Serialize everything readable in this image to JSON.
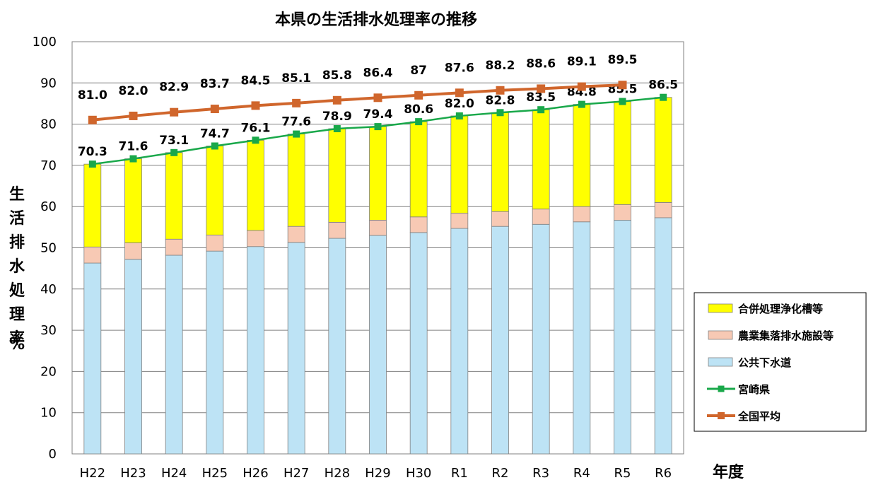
{
  "chart_data": {
    "type": "bar",
    "title": "本県の生活排水処理率の推移",
    "ylabel": "生活排水処理率",
    "yunit": "%",
    "xlabel": "年度",
    "ylim": [
      0,
      100
    ],
    "yticks": [
      "0",
      "10",
      "20",
      "30",
      "40",
      "50",
      "60",
      "70",
      "80",
      "90",
      "100"
    ],
    "grid": true,
    "legend_position": "right",
    "categories": [
      "H22",
      "H23",
      "H24",
      "H25",
      "H26",
      "H27",
      "H28",
      "H29",
      "H30",
      "R1",
      "R2",
      "R3",
      "R4",
      "R5",
      "R6"
    ],
    "stacked_series": [
      {
        "name": "公共下水道",
        "color": "#bde3f5",
        "values": [
          46.3,
          47.2,
          48.2,
          49.2,
          50.3,
          51.3,
          52.3,
          53.0,
          53.7,
          54.7,
          55.2,
          55.7,
          56.3,
          56.7,
          57.3
        ]
      },
      {
        "name": "農業集落排水施設等",
        "color": "#f7c9b4",
        "values": [
          3.9,
          4.0,
          3.9,
          3.9,
          3.9,
          3.9,
          3.9,
          3.7,
          3.8,
          3.7,
          3.6,
          3.7,
          3.7,
          3.8,
          3.7
        ]
      },
      {
        "name": "合併処理浄化槽等",
        "color": "#ffff00",
        "values": [
          20.1,
          20.4,
          21.0,
          21.6,
          21.9,
          22.4,
          22.7,
          22.7,
          23.1,
          23.6,
          24.0,
          24.1,
          24.8,
          25.0,
          25.5
        ]
      }
    ],
    "line_series": [
      {
        "name": "宮崎県",
        "color": "#19a84a",
        "values": [
          70.3,
          71.6,
          73.1,
          74.7,
          76.1,
          77.6,
          78.9,
          79.4,
          80.6,
          82.0,
          82.8,
          83.5,
          84.8,
          85.5,
          86.5
        ],
        "labels": [
          "70.3",
          "71.6",
          "73.1",
          "74.7",
          "76.1",
          "77.6",
          "78.9",
          "79.4",
          "80.6",
          "82.0",
          "82.8",
          "83.5",
          "84.8",
          "85.5",
          "86.5"
        ]
      },
      {
        "name": "全国平均",
        "color": "#d0662c",
        "values": [
          81.0,
          82.0,
          82.9,
          83.7,
          84.5,
          85.1,
          85.8,
          86.4,
          87.0,
          87.6,
          88.2,
          88.6,
          89.1,
          89.5
        ],
        "labels": [
          "81.0",
          "82.0",
          "82.9",
          "83.7",
          "84.5",
          "85.1",
          "85.8",
          "86.4",
          "87",
          "87.6",
          "88.2",
          "88.6",
          "89.1",
          "89.5"
        ]
      }
    ],
    "legend": [
      "合併処理浄化槽等",
      "農業集落排水施設等",
      "公共下水道",
      "宮崎県",
      "全国平均"
    ]
  }
}
